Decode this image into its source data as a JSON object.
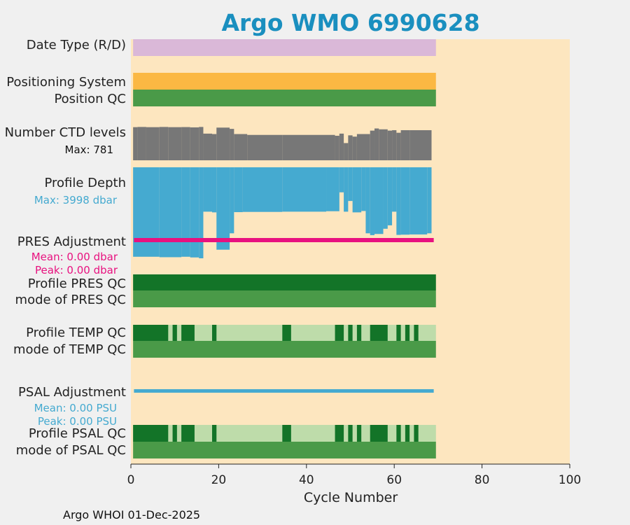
{
  "title": "Argo WMO 6990628",
  "footer": "Argo WHOI 01-Dec-2025",
  "colors": {
    "title": "#1a8fbf",
    "background": "#fde6bf",
    "date_type": "#dab8d8",
    "positioning": "#fbb843",
    "qc_good": "#4a9a48",
    "qc_dark": "#137428",
    "qc_light": "#bedcaa",
    "ctd": "#777777",
    "depth": "#45aad0",
    "pres_adj": "#e8117f",
    "psal_adj": "#45aad0"
  },
  "chart_data": {
    "type": "bar",
    "title": "Argo WMO 6990628",
    "xlabel": "Cycle Number",
    "xlim": [
      0,
      100
    ],
    "xticks": [
      0,
      20,
      40,
      60,
      80,
      100
    ],
    "grid": false,
    "cycles": {
      "first": 1,
      "last": 69
    },
    "rows": [
      {
        "label": "Date Type (R/D)"
      },
      {
        "label": "Positioning System"
      },
      {
        "label": "Position QC"
      },
      {
        "label": "Number CTD levels",
        "note": "Max: 781"
      },
      {
        "label": "Profile Depth",
        "note": "Max: 3998 dbar"
      },
      {
        "label": "PRES Adjustment",
        "notes": [
          "Mean: 0.00 dbar",
          "Peak: 0.00 dbar"
        ]
      },
      {
        "label": "Profile PRES QC"
      },
      {
        "label": "mode of PRES QC"
      },
      {
        "label": "Profile TEMP QC"
      },
      {
        "label": "mode of TEMP QC"
      },
      {
        "label": "PSAL Adjustment",
        "notes": [
          "Mean: 0.00 PSU",
          "Peak: 0.00 PSU"
        ]
      },
      {
        "label": "Profile PSAL QC"
      },
      {
        "label": "mode of PSAL QC"
      }
    ],
    "ctd_levels_max": 781,
    "ctd_levels": [
      {
        "from": 1,
        "to": 2,
        "value": 770
      },
      {
        "from": 2,
        "to": 4,
        "value": 775
      },
      {
        "from": 4,
        "to": 7,
        "value": 770
      },
      {
        "from": 7,
        "to": 9,
        "value": 775
      },
      {
        "from": 9,
        "to": 12,
        "value": 770
      },
      {
        "from": 12,
        "to": 14,
        "value": 772
      },
      {
        "from": 14,
        "to": 16,
        "value": 765
      },
      {
        "from": 16,
        "to": 17,
        "value": 775
      },
      {
        "from": 17,
        "to": 19,
        "value": 620
      },
      {
        "from": 19,
        "to": 20,
        "value": 610
      },
      {
        "from": 20,
        "to": 23,
        "value": 760
      },
      {
        "from": 23,
        "to": 24,
        "value": 730
      },
      {
        "from": 24,
        "to": 27,
        "value": 610
      },
      {
        "from": 27,
        "to": 35,
        "value": 590
      },
      {
        "from": 35,
        "to": 47,
        "value": 590
      },
      {
        "from": 47,
        "to": 48,
        "value": 570
      },
      {
        "from": 48,
        "to": 49,
        "value": 620
      },
      {
        "from": 49,
        "to": 50,
        "value": 400
      },
      {
        "from": 50,
        "to": 51,
        "value": 580
      },
      {
        "from": 51,
        "to": 52,
        "value": 550
      },
      {
        "from": 52,
        "to": 55,
        "value": 610
      },
      {
        "from": 55,
        "to": 56,
        "value": 690
      },
      {
        "from": 56,
        "to": 57,
        "value": 740
      },
      {
        "from": 57,
        "to": 59,
        "value": 720
      },
      {
        "from": 59,
        "to": 60,
        "value": 690
      },
      {
        "from": 60,
        "to": 61,
        "value": 700
      },
      {
        "from": 61,
        "to": 62,
        "value": 640
      },
      {
        "from": 62,
        "to": 64,
        "value": 700
      },
      {
        "from": 64,
        "to": 69,
        "value": 700
      }
    ],
    "profile_depth_max_dbar": 3998,
    "profile_depth": [
      {
        "from": 1,
        "to": 7,
        "value": 3930
      },
      {
        "from": 7,
        "to": 12,
        "value": 3950
      },
      {
        "from": 12,
        "to": 14,
        "value": 3930
      },
      {
        "from": 14,
        "to": 16,
        "value": 3960
      },
      {
        "from": 16,
        "to": 17,
        "value": 3998
      },
      {
        "from": 17,
        "to": 19,
        "value": 1950
      },
      {
        "from": 19,
        "to": 20,
        "value": 1980
      },
      {
        "from": 20,
        "to": 23,
        "value": 3620
      },
      {
        "from": 23,
        "to": 24,
        "value": 2900
      },
      {
        "from": 24,
        "to": 26,
        "value": 1970
      },
      {
        "from": 26,
        "to": 35,
        "value": 1960
      },
      {
        "from": 35,
        "to": 45,
        "value": 1950
      },
      {
        "from": 45,
        "to": 48,
        "value": 1930
      },
      {
        "from": 48,
        "to": 49,
        "value": 1100
      },
      {
        "from": 49,
        "to": 50,
        "value": 1950
      },
      {
        "from": 50,
        "to": 51,
        "value": 1480
      },
      {
        "from": 51,
        "to": 53,
        "value": 1980
      },
      {
        "from": 53,
        "to": 54,
        "value": 1920
      },
      {
        "from": 54,
        "to": 55,
        "value": 2900
      },
      {
        "from": 55,
        "to": 56,
        "value": 2980
      },
      {
        "from": 56,
        "to": 58,
        "value": 2930
      },
      {
        "from": 58,
        "to": 59,
        "value": 2700
      },
      {
        "from": 59,
        "to": 60,
        "value": 2550
      },
      {
        "from": 60,
        "to": 61,
        "value": 1950
      },
      {
        "from": 61,
        "to": 62,
        "value": 2970
      },
      {
        "from": 62,
        "to": 64,
        "value": 2960
      },
      {
        "from": 64,
        "to": 68,
        "value": 2950
      },
      {
        "from": 68,
        "to": 69,
        "value": 2900
      }
    ],
    "pres_adjustment": {
      "mean_dbar": 0.0,
      "peak_dbar": 0.0
    },
    "psal_adjustment": {
      "mean_psu": 0.0,
      "peak_psu": 0.0
    },
    "temp_qc_bad_cycles": [
      {
        "from": 1,
        "to": 9
      },
      {
        "from": 10,
        "to": 11
      },
      {
        "from": 12,
        "to": 15
      },
      {
        "from": 19,
        "to": 20
      },
      {
        "from": 35,
        "to": 37
      },
      {
        "from": 47,
        "to": 49
      },
      {
        "from": 50,
        "to": 51
      },
      {
        "from": 52,
        "to": 53
      },
      {
        "from": 55,
        "to": 59
      },
      {
        "from": 61,
        "to": 62
      },
      {
        "from": 63,
        "to": 64
      },
      {
        "from": 65,
        "to": 66
      }
    ],
    "psal_qc_bad_cycles": [
      {
        "from": 1,
        "to": 9
      },
      {
        "from": 10,
        "to": 11
      },
      {
        "from": 12,
        "to": 15
      },
      {
        "from": 19,
        "to": 20
      },
      {
        "from": 35,
        "to": 37
      },
      {
        "from": 47,
        "to": 49
      },
      {
        "from": 50,
        "to": 51
      },
      {
        "from": 52,
        "to": 53
      },
      {
        "from": 55,
        "to": 59
      },
      {
        "from": 61,
        "to": 62
      },
      {
        "from": 63,
        "to": 64
      },
      {
        "from": 65,
        "to": 66
      }
    ]
  }
}
